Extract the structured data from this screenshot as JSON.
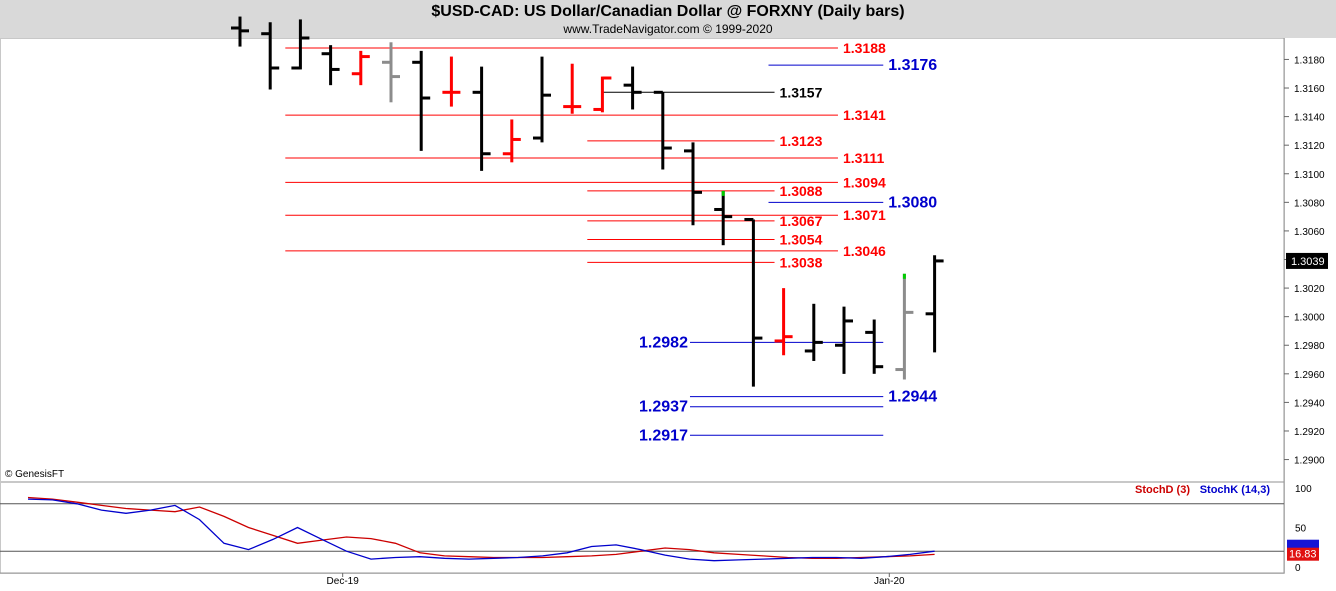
{
  "header": {
    "title": "$USD-CAD:  US Dollar/Canadian Dollar @ FORXNY  (Daily bars)",
    "subtitle": "www.TradeNavigator.com © 1999-2020",
    "copyright": "© GenesisFT"
  },
  "colors": {
    "up": "#000000",
    "down": "#ff0000",
    "neutral": "#8c8c8c",
    "highlight": "#00cc00",
    "resistance": "#ff0000",
    "support": "#0000cc",
    "stochD": "#cc0000",
    "stochK": "#0000cc",
    "title_bar": "#d9d9d9"
  },
  "chart_data": [
    {
      "type": "ohlc",
      "title": "$USD-CAD:  US Dollar/Canadian Dollar @ FORXNY  (Daily bars)",
      "ylim": [
        1.2885,
        1.3195
      ],
      "grid": false,
      "y_ticks": [
        "1.3180",
        "1.3160",
        "1.3140",
        "1.3120",
        "1.3100",
        "1.3080",
        "1.3060",
        "1.3040",
        "1.3020",
        "1.3000",
        "1.2980",
        "1.2960",
        "1.2940",
        "1.2920",
        "1.2900"
      ],
      "x_ticks": [
        {
          "label": "Dec-19",
          "index": 3.4
        },
        {
          "label": "Jan-20",
          "index": 21.5
        }
      ],
      "last_price": "1.3039",
      "bars": [
        {
          "o": 1.3202,
          "h": 1.321,
          "l": 1.3189,
          "c": 1.32,
          "color": "up"
        },
        {
          "o": 1.3198,
          "h": 1.3206,
          "l": 1.3159,
          "c": 1.3174,
          "color": "up"
        },
        {
          "o": 1.3174,
          "h": 1.3208,
          "l": 1.3173,
          "c": 1.3195,
          "color": "up"
        },
        {
          "o": 1.3184,
          "h": 1.319,
          "l": 1.3162,
          "c": 1.3173,
          "color": "up"
        },
        {
          "o": 1.317,
          "h": 1.3186,
          "l": 1.3162,
          "c": 1.3182,
          "color": "down"
        },
        {
          "o": 1.3178,
          "h": 1.3192,
          "l": 1.315,
          "c": 1.3168,
          "color": "neutral"
        },
        {
          "o": 1.3178,
          "h": 1.3186,
          "l": 1.3116,
          "c": 1.3153,
          "color": "up"
        },
        {
          "o": 1.3157,
          "h": 1.3182,
          "l": 1.3147,
          "c": 1.3157,
          "color": "down"
        },
        {
          "o": 1.3157,
          "h": 1.3175,
          "l": 1.3102,
          "c": 1.3114,
          "color": "up"
        },
        {
          "o": 1.3114,
          "h": 1.3138,
          "l": 1.3108,
          "c": 1.3124,
          "color": "down"
        },
        {
          "o": 1.3125,
          "h": 1.3182,
          "l": 1.3122,
          "c": 1.3155,
          "color": "up"
        },
        {
          "o": 1.3147,
          "h": 1.3177,
          "l": 1.3142,
          "c": 1.3147,
          "color": "down"
        },
        {
          "o": 1.3145,
          "h": 1.3168,
          "l": 1.3143,
          "c": 1.3167,
          "color": "down"
        },
        {
          "o": 1.3162,
          "h": 1.3175,
          "l": 1.3145,
          "c": 1.3157,
          "color": "up"
        },
        {
          "o": 1.3157,
          "h": 1.3157,
          "l": 1.3103,
          "c": 1.3118,
          "color": "up"
        },
        {
          "o": 1.3116,
          "h": 1.3122,
          "l": 1.3064,
          "c": 1.3087,
          "color": "up"
        },
        {
          "o": 1.3075,
          "h": 1.3088,
          "l": 1.305,
          "c": 1.307,
          "color": "up"
        },
        {
          "o": 1.3068,
          "h": 1.3068,
          "l": 1.2951,
          "c": 1.2985,
          "color": "up"
        },
        {
          "o": 1.2983,
          "h": 1.302,
          "l": 1.2973,
          "c": 1.2986,
          "color": "down"
        },
        {
          "o": 1.2976,
          "h": 1.3009,
          "l": 1.2969,
          "c": 1.2982,
          "color": "up"
        },
        {
          "o": 1.298,
          "h": 1.3007,
          "l": 1.296,
          "c": 1.2997,
          "color": "up"
        },
        {
          "o": 1.2989,
          "h": 1.2998,
          "l": 1.296,
          "c": 1.2965,
          "color": "up"
        },
        {
          "o": 1.2963,
          "h": 1.303,
          "l": 1.2956,
          "c": 1.3003,
          "color": "neutral"
        },
        {
          "o": 1.3002,
          "h": 1.3043,
          "l": 1.2975,
          "c": 1.3039,
          "color": "up"
        }
      ],
      "levels": [
        {
          "label": "1.3188",
          "value": 1.3188,
          "kind": "resistance",
          "from": 1.5,
          "to": 19.8,
          "label_at": "end"
        },
        {
          "label": "1.3176",
          "value": 1.3176,
          "kind": "support",
          "from": 17.5,
          "to": 21.3,
          "label_at": "end"
        },
        {
          "label": "1.3157",
          "value": 1.3157,
          "kind": "black",
          "from": 12,
          "to": 17.7,
          "label_at": "end"
        },
        {
          "label": "1.3141",
          "value": 1.3141,
          "kind": "resistance",
          "from": 1.5,
          "to": 19.8,
          "label_at": "end"
        },
        {
          "label": "1.3123",
          "value": 1.3123,
          "kind": "resistance",
          "from": 11.5,
          "to": 17.7,
          "label_at": "end"
        },
        {
          "label": "1.3111",
          "value": 1.3111,
          "kind": "resistance",
          "from": 1.5,
          "to": 19.8,
          "label_at": "end"
        },
        {
          "label": "1.3094",
          "value": 1.3094,
          "kind": "resistance",
          "from": 1.5,
          "to": 19.8,
          "label_at": "end"
        },
        {
          "label": "1.3088",
          "value": 1.3088,
          "kind": "resistance",
          "from": 11.5,
          "to": 17.7,
          "label_at": "end"
        },
        {
          "label": "1.3080",
          "value": 1.308,
          "kind": "support",
          "from": 17.5,
          "to": 21.3,
          "label_at": "end"
        },
        {
          "label": "1.3071",
          "value": 1.3071,
          "kind": "resistance",
          "from": 1.5,
          "to": 19.8,
          "label_at": "end"
        },
        {
          "label": "1.3067",
          "value": 1.3067,
          "kind": "resistance",
          "from": 11.5,
          "to": 17.7,
          "label_at": "end"
        },
        {
          "label": "1.3054",
          "value": 1.3054,
          "kind": "resistance",
          "from": 11.5,
          "to": 17.7,
          "label_at": "end"
        },
        {
          "label": "1.3046",
          "value": 1.3046,
          "kind": "resistance",
          "from": 1.5,
          "to": 19.8,
          "label_at": "end"
        },
        {
          "label": "1.3038",
          "value": 1.3038,
          "kind": "resistance",
          "from": 11.5,
          "to": 17.7,
          "label_at": "end"
        },
        {
          "label": "1.2982",
          "value": 1.2982,
          "kind": "support",
          "from": 14.9,
          "to": 21.3,
          "label_at": "start"
        },
        {
          "label": "1.2944",
          "value": 1.2944,
          "kind": "support",
          "from": 14.9,
          "to": 21.3,
          "label_at": "end"
        },
        {
          "label": "1.2937",
          "value": 1.2937,
          "kind": "support",
          "from": 14.9,
          "to": 21.3,
          "label_at": "start"
        },
        {
          "label": "1.2917",
          "value": 1.2917,
          "kind": "support",
          "from": 14.9,
          "to": 21.3,
          "label_at": "start"
        }
      ]
    },
    {
      "type": "line",
      "ylim": [
        0,
        100
      ],
      "y_ticks": [
        "100",
        "50",
        "0"
      ],
      "reference_lines": [
        80,
        20
      ],
      "last_value": "16.83",
      "series": [
        {
          "name": "StochD (3)",
          "color": "stochD",
          "values": [
            88,
            86,
            82,
            78,
            74,
            72,
            70,
            76,
            64,
            50,
            40,
            30,
            34,
            38,
            36,
            30,
            18,
            14,
            13,
            12,
            12,
            12,
            13,
            14,
            16,
            20,
            24,
            22,
            18,
            16,
            14,
            12,
            11,
            11,
            12,
            13,
            14,
            16
          ]
        },
        {
          "name": "StochK (14,3)",
          "color": "stochK",
          "values": [
            86,
            85,
            80,
            72,
            68,
            72,
            78,
            60,
            30,
            22,
            35,
            50,
            35,
            20,
            10,
            12,
            13,
            11,
            10,
            11,
            12,
            14,
            18,
            26,
            28,
            22,
            15,
            10,
            8,
            9,
            10,
            11,
            12,
            12,
            11,
            13,
            16,
            20
          ]
        }
      ]
    }
  ]
}
